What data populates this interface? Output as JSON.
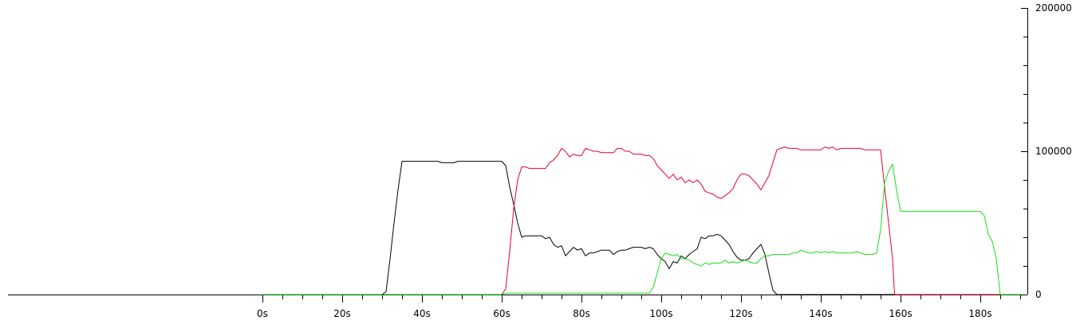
{
  "chart_data": {
    "type": "line",
    "title": "",
    "xlabel": "",
    "ylabel": "",
    "xlim": [
      0,
      190
    ],
    "ylim": [
      0,
      200000
    ],
    "grid": false,
    "x_ticks": [
      {
        "value": 0,
        "label": "0s"
      },
      {
        "value": 20,
        "label": "20s"
      },
      {
        "value": 40,
        "label": "40s"
      },
      {
        "value": 60,
        "label": "60s"
      },
      {
        "value": 80,
        "label": "80s"
      },
      {
        "value": 100,
        "label": "100s"
      },
      {
        "value": 120,
        "label": "120s"
      },
      {
        "value": 140,
        "label": "140s"
      },
      {
        "value": 160,
        "label": "160s"
      },
      {
        "value": 180,
        "label": "180s"
      }
    ],
    "x_minor_step": 5,
    "y_ticks": [
      {
        "value": 0,
        "label": "0"
      },
      {
        "value": 100000,
        "label": "100000"
      },
      {
        "value": 200000,
        "label": "200000"
      }
    ],
    "y_minor_step": 20000,
    "series": [
      {
        "color": "#000000",
        "points": [
          [
            0,
            0
          ],
          [
            30,
            0
          ],
          [
            31,
            2000
          ],
          [
            32,
            25000
          ],
          [
            33,
            50000
          ],
          [
            34,
            73000
          ],
          [
            35,
            93000
          ],
          [
            38,
            93000
          ],
          [
            44,
            93000
          ],
          [
            45,
            92000
          ],
          [
            48,
            92000
          ],
          [
            49,
            93000
          ],
          [
            55,
            93000
          ],
          [
            60,
            93000
          ],
          [
            61,
            90000
          ],
          [
            62,
            75000
          ],
          [
            63,
            63000
          ],
          [
            64,
            50000
          ],
          [
            65,
            40000
          ],
          [
            66,
            41000
          ],
          [
            70,
            41000
          ],
          [
            71,
            39000
          ],
          [
            72,
            40000
          ],
          [
            73,
            35000
          ],
          [
            74,
            33000
          ],
          [
            75,
            34000
          ],
          [
            76,
            27000
          ],
          [
            77,
            30000
          ],
          [
            78,
            33000
          ],
          [
            79,
            31000
          ],
          [
            80,
            32000
          ],
          [
            81,
            27000
          ],
          [
            82,
            29000
          ],
          [
            83,
            29000
          ],
          [
            84,
            30000
          ],
          [
            85,
            31000
          ],
          [
            86,
            31000
          ],
          [
            87,
            31000
          ],
          [
            88,
            28000
          ],
          [
            89,
            30000
          ],
          [
            90,
            31000
          ],
          [
            91,
            31000
          ],
          [
            92,
            32000
          ],
          [
            93,
            33000
          ],
          [
            94,
            33000
          ],
          [
            95,
            33000
          ],
          [
            96,
            32000
          ],
          [
            97,
            33000
          ],
          [
            98,
            32000
          ],
          [
            99,
            28000
          ],
          [
            100,
            25000
          ],
          [
            101,
            23000
          ],
          [
            102,
            18000
          ],
          [
            103,
            23000
          ],
          [
            104,
            22000
          ],
          [
            105,
            27000
          ],
          [
            106,
            25000
          ],
          [
            107,
            28000
          ],
          [
            108,
            30000
          ],
          [
            109,
            32000
          ],
          [
            110,
            40000
          ],
          [
            111,
            39000
          ],
          [
            112,
            41000
          ],
          [
            113,
            41000
          ],
          [
            114,
            42000
          ],
          [
            115,
            41000
          ],
          [
            116,
            38000
          ],
          [
            117,
            35000
          ],
          [
            118,
            30000
          ],
          [
            119,
            26000
          ],
          [
            120,
            24000
          ],
          [
            121,
            24000
          ],
          [
            122,
            25000
          ],
          [
            123,
            29000
          ],
          [
            124,
            32000
          ],
          [
            125,
            35000
          ],
          [
            126,
            28000
          ],
          [
            127,
            15000
          ],
          [
            128,
            3000
          ],
          [
            129,
            0
          ],
          [
            190,
            0
          ]
        ]
      },
      {
        "color": "#e8002a",
        "points": [
          [
            0,
            0
          ],
          [
            60,
            0
          ],
          [
            61,
            4000
          ],
          [
            62,
            30000
          ],
          [
            63,
            60000
          ],
          [
            64,
            80000
          ],
          [
            65,
            89000
          ],
          [
            66,
            89000
          ],
          [
            67,
            88000
          ],
          [
            70,
            88000
          ],
          [
            71,
            88000
          ],
          [
            72,
            92000
          ],
          [
            73,
            94000
          ],
          [
            74,
            97000
          ],
          [
            75,
            102000
          ],
          [
            76,
            100000
          ],
          [
            77,
            96000
          ],
          [
            78,
            98000
          ],
          [
            79,
            97000
          ],
          [
            80,
            97000
          ],
          [
            81,
            102000
          ],
          [
            82,
            101000
          ],
          [
            83,
            100000
          ],
          [
            84,
            100000
          ],
          [
            85,
            99000
          ],
          [
            86,
            99000
          ],
          [
            87,
            99000
          ],
          [
            88,
            99000
          ],
          [
            89,
            102000
          ],
          [
            90,
            102000
          ],
          [
            91,
            100000
          ],
          [
            92,
            100000
          ],
          [
            93,
            98000
          ],
          [
            94,
            98000
          ],
          [
            95,
            98000
          ],
          [
            96,
            97000
          ],
          [
            97,
            97000
          ],
          [
            98,
            95000
          ],
          [
            99,
            90000
          ],
          [
            100,
            87000
          ],
          [
            101,
            84000
          ],
          [
            102,
            81000
          ],
          [
            103,
            84000
          ],
          [
            104,
            80000
          ],
          [
            105,
            82000
          ],
          [
            106,
            78000
          ],
          [
            107,
            80000
          ],
          [
            108,
            78000
          ],
          [
            109,
            80000
          ],
          [
            110,
            77000
          ],
          [
            111,
            72000
          ],
          [
            112,
            71000
          ],
          [
            113,
            70000
          ],
          [
            114,
            68000
          ],
          [
            115,
            67000
          ],
          [
            116,
            69000
          ],
          [
            117,
            71000
          ],
          [
            118,
            74000
          ],
          [
            119,
            80000
          ],
          [
            120,
            84000
          ],
          [
            121,
            84000
          ],
          [
            122,
            83000
          ],
          [
            123,
            80000
          ],
          [
            124,
            77000
          ],
          [
            125,
            73000
          ],
          [
            126,
            78000
          ],
          [
            127,
            83000
          ],
          [
            128,
            92000
          ],
          [
            129,
            101000
          ],
          [
            130,
            102000
          ],
          [
            131,
            103000
          ],
          [
            132,
            102000
          ],
          [
            133,
            102000
          ],
          [
            134,
            102000
          ],
          [
            135,
            101000
          ],
          [
            140,
            101000
          ],
          [
            141,
            103000
          ],
          [
            142,
            102000
          ],
          [
            143,
            103000
          ],
          [
            144,
            101000
          ],
          [
            145,
            102000
          ],
          [
            150,
            102000
          ],
          [
            151,
            101000
          ],
          [
            152,
            101000
          ],
          [
            155,
            101000
          ],
          [
            156,
            75000
          ],
          [
            157,
            50000
          ],
          [
            158,
            25000
          ],
          [
            158.5,
            0
          ],
          [
            190,
            0
          ]
        ]
      },
      {
        "color": "#16dd16",
        "points": [
          [
            0,
            0
          ],
          [
            60,
            0
          ],
          [
            61,
            1000
          ],
          [
            96,
            1000
          ],
          [
            97,
            1000
          ],
          [
            98,
            5000
          ],
          [
            99,
            15000
          ],
          [
            100,
            25000
          ],
          [
            101,
            29000
          ],
          [
            102,
            28000
          ],
          [
            103,
            27000
          ],
          [
            104,
            28000
          ],
          [
            105,
            25000
          ],
          [
            106,
            25000
          ],
          [
            107,
            24000
          ],
          [
            108,
            22000
          ],
          [
            109,
            21000
          ],
          [
            110,
            20000
          ],
          [
            111,
            22000
          ],
          [
            112,
            21000
          ],
          [
            113,
            22000
          ],
          [
            114,
            22000
          ],
          [
            115,
            22000
          ],
          [
            116,
            24000
          ],
          [
            117,
            22000
          ],
          [
            118,
            23000
          ],
          [
            119,
            22000
          ],
          [
            120,
            23000
          ],
          [
            121,
            24000
          ],
          [
            122,
            23000
          ],
          [
            123,
            22000
          ],
          [
            124,
            22000
          ],
          [
            125,
            25000
          ],
          [
            126,
            27000
          ],
          [
            127,
            27000
          ],
          [
            128,
            28000
          ],
          [
            129,
            28000
          ],
          [
            130,
            28000
          ],
          [
            131,
            28000
          ],
          [
            132,
            28000
          ],
          [
            133,
            29000
          ],
          [
            134,
            29000
          ],
          [
            135,
            31000
          ],
          [
            136,
            30000
          ],
          [
            137,
            29000
          ],
          [
            138,
            29000
          ],
          [
            139,
            30000
          ],
          [
            140,
            29000
          ],
          [
            141,
            30000
          ],
          [
            142,
            29000
          ],
          [
            143,
            30000
          ],
          [
            144,
            29000
          ],
          [
            145,
            29000
          ],
          [
            146,
            29000
          ],
          [
            147,
            29000
          ],
          [
            148,
            29000
          ],
          [
            149,
            30000
          ],
          [
            150,
            29000
          ],
          [
            151,
            28000
          ],
          [
            152,
            28000
          ],
          [
            153,
            28000
          ],
          [
            154,
            29000
          ],
          [
            155,
            45000
          ],
          [
            156,
            78000
          ],
          [
            157,
            86000
          ],
          [
            158,
            91000
          ],
          [
            159,
            73000
          ],
          [
            160,
            58000
          ],
          [
            161,
            58000
          ],
          [
            175,
            58000
          ],
          [
            180,
            58000
          ],
          [
            181,
            55000
          ],
          [
            182,
            42000
          ],
          [
            183,
            37000
          ],
          [
            184,
            25000
          ],
          [
            185,
            0
          ],
          [
            190,
            0
          ]
        ]
      }
    ]
  }
}
